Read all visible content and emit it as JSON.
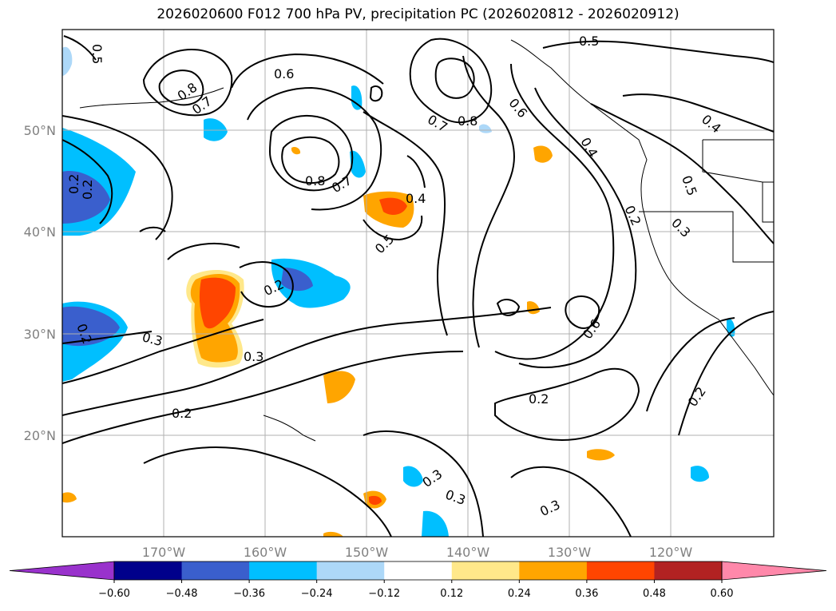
{
  "title": "2026020600 F012 700 hPa PV, precipitation PC (2026020812 - 2026020912)",
  "lat_labels": [
    "50°N",
    "40°N",
    "30°N",
    "20°N"
  ],
  "lon_labels": [
    "170°W",
    "160°W",
    "150°W",
    "140°W",
    "130°W",
    "120°W"
  ],
  "contour_labels": [
    "0.5",
    "0.6",
    "0.8",
    "0.7",
    "0.8",
    "0.7",
    "0.2",
    "0.4",
    "0.5",
    "0.2",
    "0.3",
    "0.3",
    "0.2",
    "0.2",
    "0.3",
    "0.3",
    "0.7",
    "0.8",
    "0.6",
    "0.4",
    "0.6",
    "0.2",
    "0.3",
    "0.5",
    "0.5",
    "0.2",
    "0.3",
    "0.4",
    "0.2",
    "0.2"
  ],
  "colorbar": {
    "ticks": [
      "−0.60",
      "−0.48",
      "−0.36",
      "−0.24",
      "−0.12",
      "0.12",
      "0.24",
      "0.36",
      "0.48",
      "0.60"
    ],
    "colors": [
      "#9932cc",
      "#00008b",
      "#3a5fcd",
      "#00bfff",
      "#add8f8",
      "#ffffff",
      "#ffe88a",
      "#ffa500",
      "#ff4500",
      "#b22222",
      "#ff88aa"
    ]
  }
}
